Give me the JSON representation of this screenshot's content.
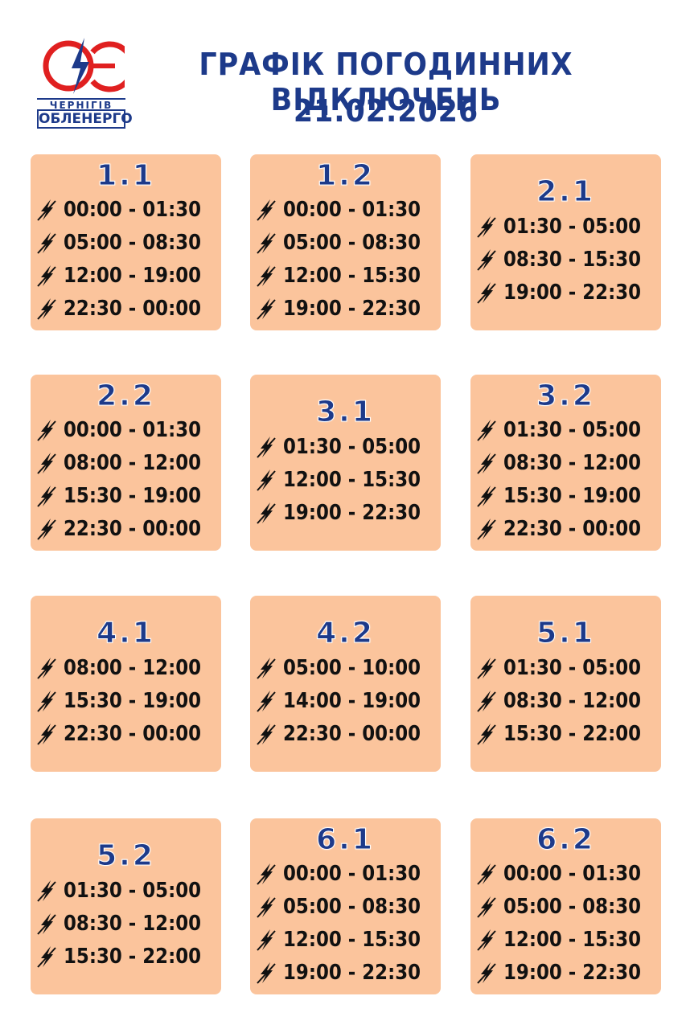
{
  "header": {
    "logo_city": "ЧЕРНІГІВ",
    "logo_company": "ОБЛЕНЕРГО",
    "title": "ГРАФІК ПОГОДИННИХ ВІДКЛЮЧЕНЬ",
    "date": "21.02.2026"
  },
  "groups": [
    {
      "name": "1.1",
      "times": [
        "00:00 - 01:30",
        "05:00 - 08:30",
        "12:00 - 19:00",
        "22:30 - 00:00"
      ]
    },
    {
      "name": "1.2",
      "times": [
        "00:00 - 01:30",
        "05:00 - 08:30",
        "12:00 - 15:30",
        "19:00 - 22:30"
      ]
    },
    {
      "name": "2.1",
      "times": [
        "01:30 - 05:00",
        "08:30 - 15:30",
        "19:00 - 22:30"
      ]
    },
    {
      "name": "2.2",
      "times": [
        "00:00 - 01:30",
        "08:00 - 12:00",
        "15:30 - 19:00",
        "22:30 - 00:00"
      ]
    },
    {
      "name": "3.1",
      "times": [
        "01:30 - 05:00",
        "12:00 - 15:30",
        "19:00 - 22:30"
      ]
    },
    {
      "name": "3.2",
      "times": [
        "01:30 - 05:00",
        "08:30 - 12:00",
        "15:30 - 19:00",
        "22:30 - 00:00"
      ]
    },
    {
      "name": "4.1",
      "times": [
        "08:00 - 12:00",
        "15:30 - 19:00",
        "22:30 - 00:00"
      ]
    },
    {
      "name": "4.2",
      "times": [
        "05:00 - 10:00",
        "14:00 - 19:00",
        "22:30 - 00:00"
      ]
    },
    {
      "name": "5.1",
      "times": [
        "01:30 - 05:00",
        "08:30 - 12:00",
        "15:30 - 22:00"
      ]
    },
    {
      "name": "5.2",
      "times": [
        "01:30 - 05:00",
        "08:30 - 12:00",
        "15:30 - 22:00"
      ]
    },
    {
      "name": "6.1",
      "times": [
        "00:00 - 01:30",
        "05:00 - 08:30",
        "12:00 - 15:30",
        "19:00 - 22:30"
      ]
    },
    {
      "name": "6.2",
      "times": [
        "00:00 - 01:30",
        "05:00 - 08:30",
        "12:00 - 15:30",
        "19:00 - 22:30"
      ]
    }
  ]
}
